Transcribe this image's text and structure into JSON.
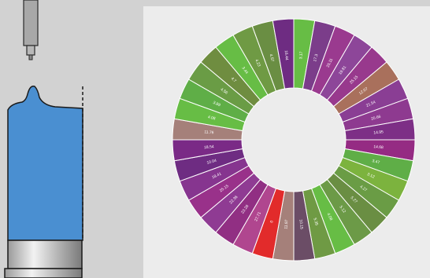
{
  "colors": {
    "background": "#d2d2d2",
    "panel": "#ececec",
    "drop": "#4a8fd1",
    "needle": "#a8a8a8",
    "bright_green": "#67bd45",
    "dark_green": "#6f9a44",
    "purple": "#7b2a86",
    "magenta": "#a0358f",
    "violet": "#8d44a0",
    "brown": "#a9705c",
    "dusty_rose": "#a5807a",
    "red": "#e22b2b",
    "slate_purple": "#6b4d66"
  },
  "sessile_drop_diagram": {
    "needle": "needle",
    "drop": "liquid-drop",
    "substrate": "substrate-holder",
    "axis": "symmetry-axis-dashed"
  },
  "chart_data": {
    "type": "pie",
    "donut": true,
    "slices": [
      {
        "label": "3.17",
        "color": "#67bd45"
      },
      {
        "label": "17.3",
        "color": "#7b3d8a"
      },
      {
        "label": "25.11",
        "color": "#9a3a8f"
      },
      {
        "label": "19.81",
        "color": "#8d4699"
      },
      {
        "label": "25.15",
        "color": "#98398d"
      },
      {
        "label": "12.07",
        "color": "#a9705c"
      },
      {
        "label": "21.54",
        "color": "#8a3e94"
      },
      {
        "label": "20.66",
        "color": "#8e3a90"
      },
      {
        "label": "14.95",
        "color": "#7d2f86"
      },
      {
        "label": "14.68",
        "color": "#952b83"
      },
      {
        "label": "3.47",
        "color": "#5fae47"
      },
      {
        "label": "3.12",
        "color": "#7cb33e"
      },
      {
        "label": "4.27",
        "color": "#6a9c45"
      },
      {
        "label": "5.27",
        "color": "#6a8e43"
      },
      {
        "label": "5.12",
        "color": "#6c9a47"
      },
      {
        "label": "4.08",
        "color": "#67bd45"
      },
      {
        "label": "5.35",
        "color": "#6f9a44"
      },
      {
        "label": "10.15",
        "color": "#6b4d66"
      },
      {
        "label": "11.97",
        "color": "#a5807a"
      },
      {
        "label": "0",
        "color": "#e22b2b"
      },
      {
        "label": "27.71",
        "color": "#b0468f"
      },
      {
        "label": "23.26",
        "color": "#912f83"
      },
      {
        "label": "22.36",
        "color": "#8f3b93"
      },
      {
        "label": "25.15",
        "color": "#99318a"
      },
      {
        "label": "18.41",
        "color": "#86358f"
      },
      {
        "label": "10.04",
        "color": "#6e2c82"
      },
      {
        "label": "18.54",
        "color": "#7a2a86"
      },
      {
        "label": "11.76",
        "color": "#a5807a"
      },
      {
        "label": "4.08",
        "color": "#67bd45"
      },
      {
        "label": "3.89",
        "color": "#5fae47"
      },
      {
        "label": "4.56",
        "color": "#6a9c45"
      },
      {
        "label": "4.7",
        "color": "#6f8d40"
      },
      {
        "label": "3.44",
        "color": "#67bd45"
      },
      {
        "label": "4.23",
        "color": "#6f9a44"
      },
      {
        "label": "4.57",
        "color": "#6a8e43"
      },
      {
        "label": "16.44",
        "color": "#6e2c82"
      }
    ]
  }
}
